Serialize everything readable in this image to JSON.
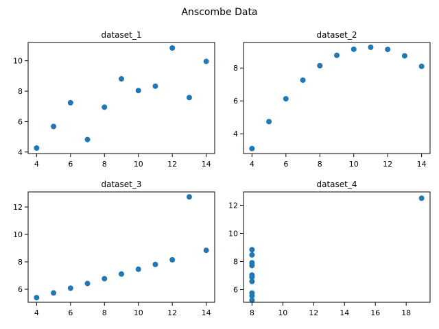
{
  "figure": {
    "title": "Anscombe Data",
    "marker_color": "#1f77b4"
  },
  "chart_data": [
    {
      "type": "scatter",
      "title": "dataset_1",
      "xlabel": "",
      "ylabel": "",
      "xlim": [
        3.5,
        14.5
      ],
      "ylim": [
        3.9,
        11.2
      ],
      "xticks": [
        4,
        6,
        8,
        10,
        12,
        14
      ],
      "yticks": [
        4,
        6,
        8,
        10
      ],
      "grid": false,
      "x": [
        10,
        8,
        13,
        9,
        11,
        14,
        6,
        4,
        12,
        7,
        5
      ],
      "y": [
        8.04,
        6.95,
        7.58,
        8.81,
        8.33,
        9.96,
        7.24,
        4.26,
        10.84,
        4.82,
        5.68
      ]
    },
    {
      "type": "scatter",
      "title": "dataset_2",
      "xlabel": "",
      "ylabel": "",
      "xlim": [
        3.5,
        14.5
      ],
      "ylim": [
        2.8,
        9.55
      ],
      "xticks": [
        4,
        6,
        8,
        10,
        12,
        14
      ],
      "yticks": [
        4,
        6,
        8
      ],
      "grid": false,
      "x": [
        10,
        8,
        13,
        9,
        11,
        14,
        6,
        4,
        12,
        7,
        5
      ],
      "y": [
        9.14,
        8.14,
        8.74,
        8.77,
        9.26,
        8.1,
        6.13,
        3.1,
        9.13,
        7.26,
        4.74
      ]
    },
    {
      "type": "scatter",
      "title": "dataset_3",
      "xlabel": "",
      "ylabel": "",
      "xlim": [
        3.5,
        14.5
      ],
      "ylim": [
        5.05,
        13.1
      ],
      "xticks": [
        4,
        6,
        8,
        10,
        12,
        14
      ],
      "yticks": [
        6,
        8,
        10,
        12
      ],
      "grid": false,
      "x": [
        10,
        8,
        13,
        9,
        11,
        14,
        6,
        4,
        12,
        7,
        5
      ],
      "y": [
        7.46,
        6.77,
        12.74,
        7.11,
        7.81,
        8.84,
        6.08,
        5.39,
        8.15,
        6.42,
        5.73
      ]
    },
    {
      "type": "scatter",
      "title": "dataset_4",
      "xlabel": "",
      "ylabel": "",
      "xlim": [
        7.45,
        19.55
      ],
      "ylim": [
        5.1,
        12.95
      ],
      "xticks": [
        8,
        10,
        12,
        14,
        16,
        18
      ],
      "yticks": [
        6,
        8,
        10,
        12
      ],
      "grid": false,
      "x": [
        8,
        8,
        8,
        8,
        8,
        8,
        8,
        19,
        8,
        8,
        8
      ],
      "y": [
        6.58,
        5.76,
        7.71,
        8.84,
        8.47,
        7.04,
        5.25,
        12.5,
        5.56,
        7.91,
        6.89
      ]
    }
  ]
}
